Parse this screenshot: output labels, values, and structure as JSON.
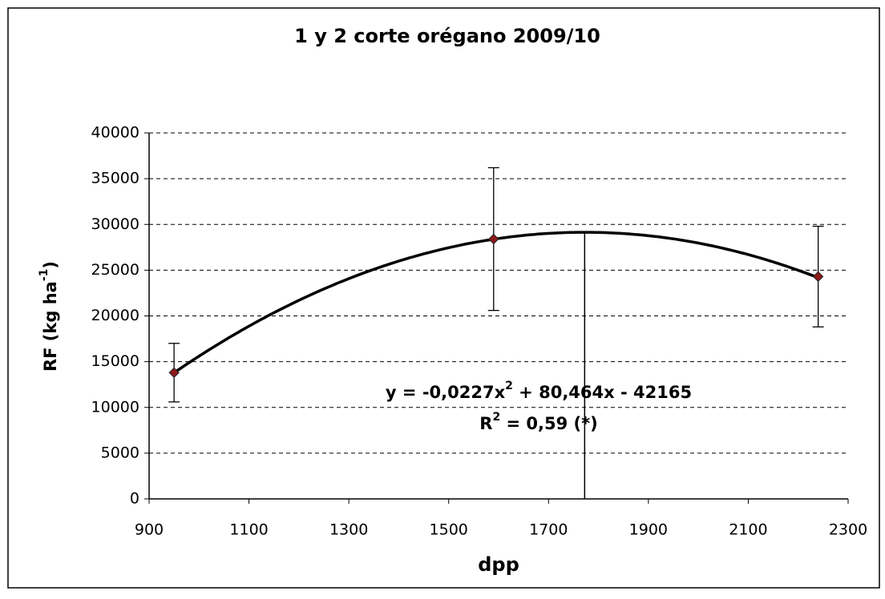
{
  "chart_data": {
    "type": "scatter",
    "title": "1 y 2 corte orégano 2009/10",
    "x_label": "dpp",
    "y_label": [
      "RF (kg ha",
      "-1",
      ")"
    ],
    "series": [
      {
        "x": [
          950,
          1590,
          2240
        ],
        "values": [
          13800,
          28400,
          24300
        ],
        "errors": [
          3200,
          7800,
          5500
        ],
        "color": "#8b1a1a"
      }
    ],
    "trendline": {
      "a": -0.0227,
      "b": 80.464,
      "c": -42165,
      "equation": [
        "y = -0,0227x",
        "2",
        " + 80,464x - 42165"
      ],
      "r2": [
        "R",
        "2",
        " = 0,59 (*)"
      ],
      "vertex_line": true
    },
    "xlim": [
      900,
      2300
    ],
    "xticks": [
      900,
      1100,
      1300,
      1500,
      1700,
      1900,
      2100,
      2300
    ],
    "ylim": [
      0,
      40000
    ],
    "yticks": [
      0,
      5000,
      10000,
      15000,
      20000,
      25000,
      30000,
      35000,
      40000
    ],
    "grid": true
  }
}
